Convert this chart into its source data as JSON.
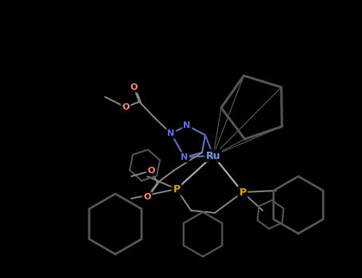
{
  "bg": "#000000",
  "atom_colors": {
    "Ru": "#7799ee",
    "P": "#ddaa00",
    "N": "#6666dd",
    "O": "#ff8888",
    "C": "#aaaaaa"
  },
  "bond_color": "#888888",
  "bond_lw": 1.4,
  "ring_color": "#666666",
  "ring_lw": 1.8,
  "figsize": [
    4.55,
    3.5
  ],
  "dpi": 100
}
